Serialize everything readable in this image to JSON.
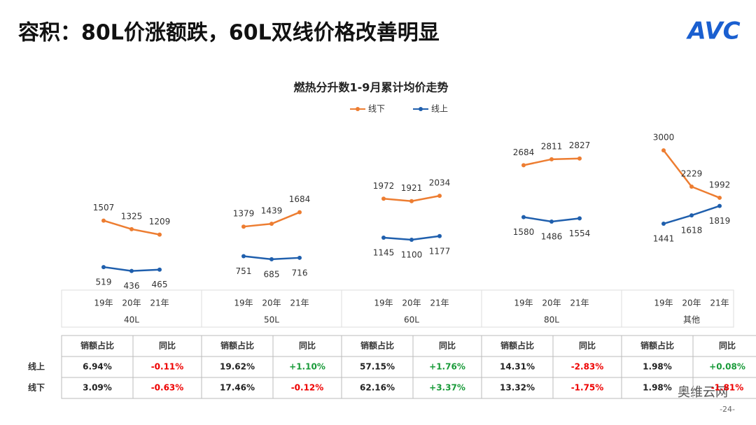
{
  "header": {
    "title": "容积：80L价涨额跌，60L双线价格改善明显",
    "logo": "AVC"
  },
  "chart_data": {
    "type": "line",
    "title": "燃热分升数1-9月累计均价走势",
    "categories": [
      "19年",
      "20年",
      "21年",
      "19年",
      "20年",
      "21年",
      "19年",
      "20年",
      "21年",
      "19年",
      "20年",
      "21年",
      "19年",
      "20年",
      "21年"
    ],
    "groups": [
      "40L",
      "50L",
      "60L",
      "80L",
      "其他"
    ],
    "series": [
      {
        "name": "线下",
        "color": "#ED7D31",
        "values": [
          1507,
          1325,
          1209,
          1379,
          1439,
          1684,
          1972,
          1921,
          2034,
          2684,
          2811,
          2827,
          3000,
          2229,
          1992
        ]
      },
      {
        "name": "线上",
        "color": "#1F5FAD",
        "values": [
          519,
          436,
          465,
          751,
          685,
          716,
          1145,
          1100,
          1177,
          1580,
          1486,
          1554,
          1441,
          1618,
          1819
        ]
      }
    ]
  },
  "table": {
    "header": [
      "销额占比",
      "同比"
    ],
    "rows": [
      {
        "label": "线上",
        "cells": [
          "6.94%",
          "-0.11%",
          "19.62%",
          "+1.10%",
          "57.15%",
          "+1.76%",
          "14.31%",
          "-2.83%",
          "1.98%",
          "+0.08%"
        ]
      },
      {
        "label": "线下",
        "cells": [
          "3.09%",
          "-0.63%",
          "17.46%",
          "-0.12%",
          "62.16%",
          "+3.37%",
          "13.32%",
          "-1.75%",
          "1.98%",
          "-1.81%"
        ]
      }
    ]
  },
  "footer": {
    "page": "-24-",
    "watermark": "奥维云网"
  }
}
